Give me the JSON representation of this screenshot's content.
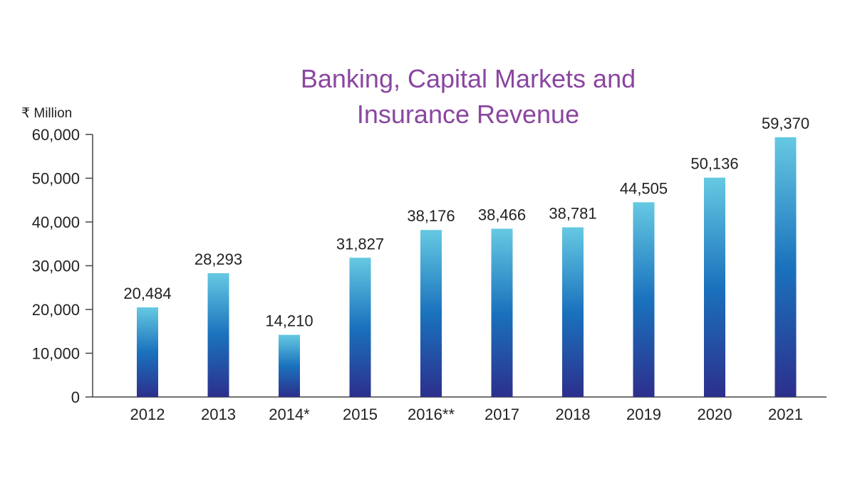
{
  "chart_data": {
    "type": "bar",
    "title_lines": [
      "Banking, Capital Markets and",
      "Insurance Revenue"
    ],
    "ylabel": "₹ Million",
    "xlabel": "",
    "ylim": [
      0,
      60000
    ],
    "yticks": [
      0,
      10000,
      20000,
      30000,
      40000,
      50000,
      60000
    ],
    "ytick_labels": [
      "0",
      "10,000",
      "20,000",
      "30,000",
      "40,000",
      "50,000",
      "60,000"
    ],
    "categories": [
      "2012",
      "2013",
      "2014*",
      "2015",
      "2016**",
      "2017",
      "2018",
      "2019",
      "2020",
      "2021"
    ],
    "values": [
      20484,
      28293,
      14210,
      31827,
      38176,
      38466,
      38781,
      44505,
      50136,
      59370
    ],
    "value_labels": [
      "20,484",
      "28,293",
      "14,210",
      "31,827",
      "38,176",
      "38,466",
      "38,781",
      "44,505",
      "50,136",
      "59,370"
    ],
    "grid": false,
    "legend": "none",
    "colors": {
      "bar_top": "#66c9e2",
      "bar_mid": "#1a72bd",
      "bar_bottom": "#2c2f8c",
      "title": "#8a46a0",
      "axis": "#444444"
    }
  }
}
